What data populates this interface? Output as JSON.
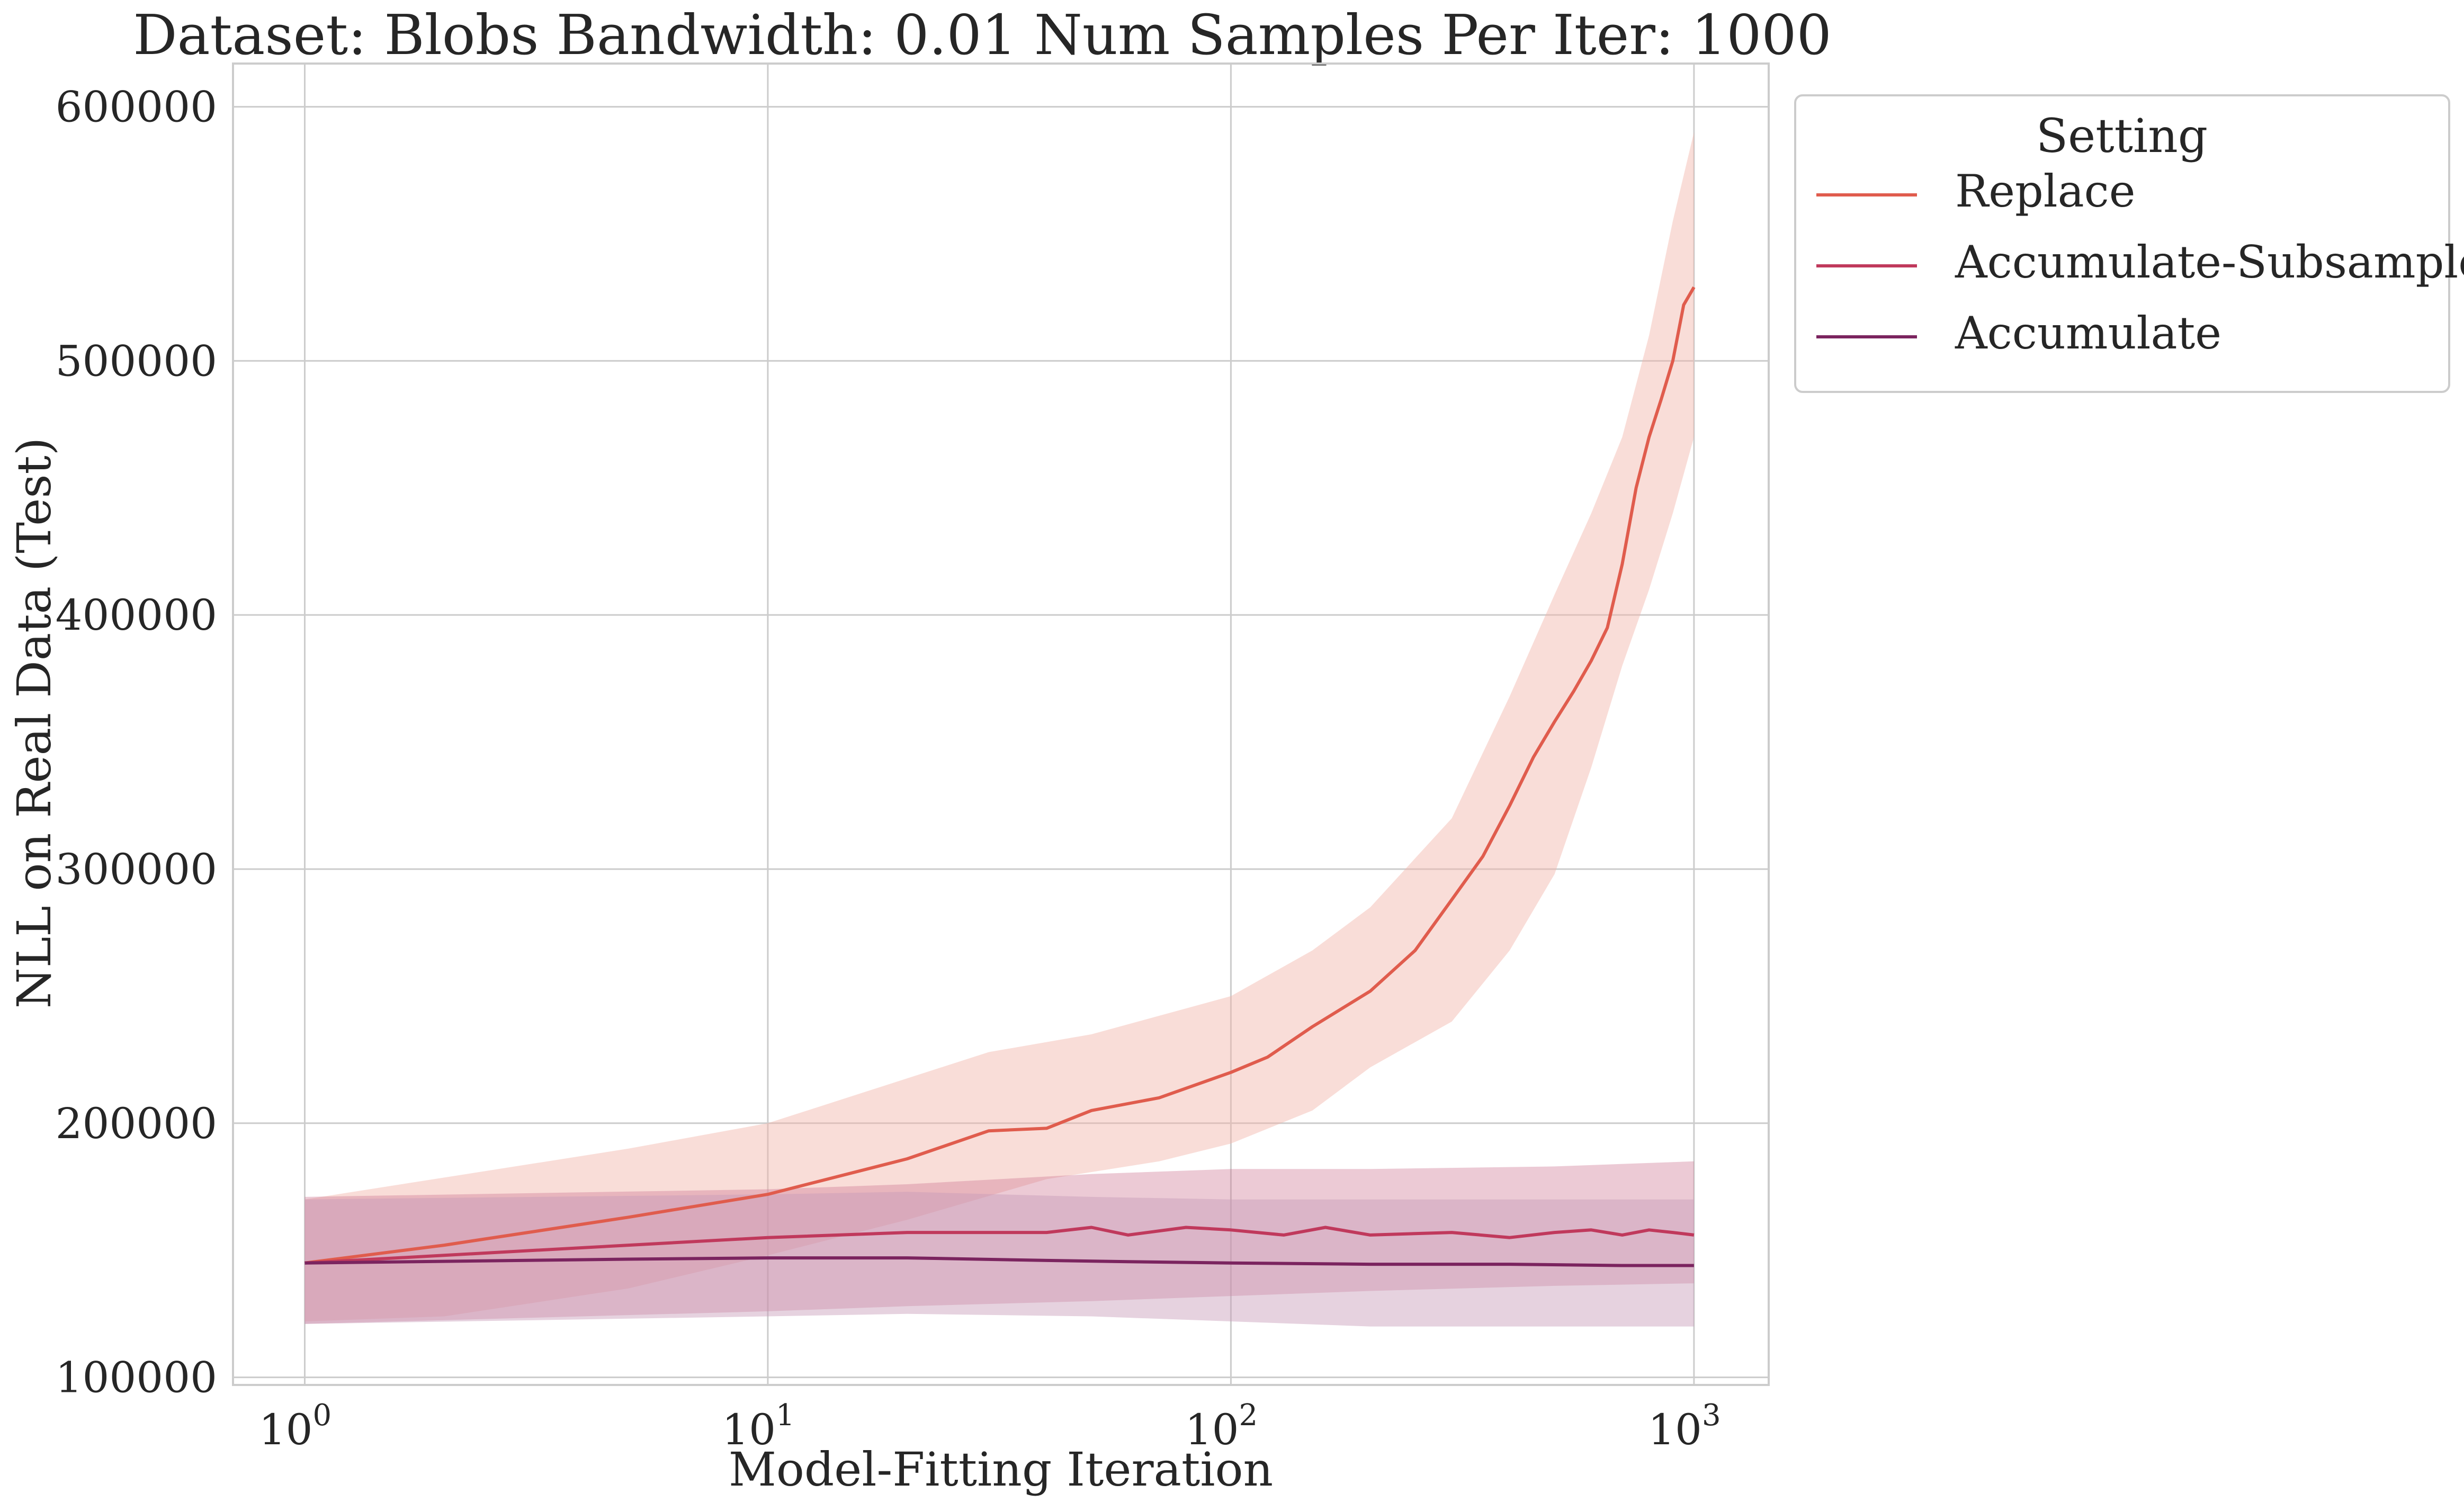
{
  "chart_data": {
    "type": "line",
    "title": "Dataset: Blobs Bandwidth: 0.01 Num Samples Per Iter: 1000",
    "xlabel": "Model-Fitting Iteration",
    "ylabel": "NLL on Real Data (Test)",
    "xscale": "log",
    "xlim": [
      0.7,
      1450
    ],
    "ylim": [
      97000,
      617000
    ],
    "xticks": [
      1,
      10,
      100,
      1000
    ],
    "xtick_labels": [
      {
        "base": "10",
        "exp": "0"
      },
      {
        "base": "10",
        "exp": "1"
      },
      {
        "base": "10",
        "exp": "2"
      },
      {
        "base": "10",
        "exp": "3"
      }
    ],
    "yticks": [
      100000,
      200000,
      300000,
      400000,
      500000,
      600000
    ],
    "ytick_labels": [
      "100000",
      "200000",
      "300000",
      "400000",
      "500000",
      "600000"
    ],
    "grid": true,
    "legend": {
      "title": "Setting",
      "placement": "outside-top-right"
    },
    "series": [
      {
        "name": "Replace",
        "color": "#e05c4d",
        "band_color": "#f2b3a8",
        "band_opacity": 0.45,
        "points": [
          [
            1,
            145000
          ],
          [
            2,
            152000
          ],
          [
            5,
            163000
          ],
          [
            10,
            172000
          ],
          [
            20,
            186000
          ],
          [
            30,
            197000
          ],
          [
            40,
            198000
          ],
          [
            50,
            205000
          ],
          [
            70,
            210000
          ],
          [
            100,
            220000
          ],
          [
            120,
            226000
          ],
          [
            150,
            238000
          ],
          [
            200,
            252000
          ],
          [
            250,
            268000
          ],
          [
            300,
            288000
          ],
          [
            350,
            305000
          ],
          [
            400,
            325000
          ],
          [
            450,
            344000
          ],
          [
            500,
            358000
          ],
          [
            550,
            370000
          ],
          [
            600,
            382000
          ],
          [
            650,
            395000
          ],
          [
            700,
            420000
          ],
          [
            750,
            450000
          ],
          [
            800,
            470000
          ],
          [
            850,
            485000
          ],
          [
            900,
            500000
          ],
          [
            950,
            522000
          ],
          [
            1000,
            529000
          ]
        ],
        "lower": [
          [
            1,
            122000
          ],
          [
            2,
            124000
          ],
          [
            5,
            135000
          ],
          [
            10,
            148000
          ],
          [
            20,
            162000
          ],
          [
            40,
            178000
          ],
          [
            70,
            185000
          ],
          [
            100,
            192000
          ],
          [
            150,
            205000
          ],
          [
            200,
            222000
          ],
          [
            300,
            240000
          ],
          [
            400,
            268000
          ],
          [
            500,
            298000
          ],
          [
            600,
            340000
          ],
          [
            700,
            380000
          ],
          [
            800,
            410000
          ],
          [
            900,
            440000
          ],
          [
            1000,
            470000
          ]
        ],
        "upper": [
          [
            1,
            170000
          ],
          [
            5,
            190000
          ],
          [
            10,
            200000
          ],
          [
            30,
            228000
          ],
          [
            50,
            235000
          ],
          [
            100,
            250000
          ],
          [
            150,
            268000
          ],
          [
            200,
            285000
          ],
          [
            300,
            320000
          ],
          [
            400,
            368000
          ],
          [
            500,
            408000
          ],
          [
            600,
            440000
          ],
          [
            700,
            470000
          ],
          [
            800,
            510000
          ],
          [
            900,
            555000
          ],
          [
            1000,
            590000
          ]
        ]
      },
      {
        "name": "Accumulate-Subsample",
        "color": "#c0395c",
        "band_color": "#d07a96",
        "band_opacity": 0.4,
        "points": [
          [
            1,
            145000
          ],
          [
            5,
            152000
          ],
          [
            10,
            155000
          ],
          [
            20,
            157000
          ],
          [
            40,
            157000
          ],
          [
            50,
            159000
          ],
          [
            60,
            156000
          ],
          [
            80,
            159000
          ],
          [
            100,
            158000
          ],
          [
            130,
            156000
          ],
          [
            160,
            159000
          ],
          [
            200,
            156000
          ],
          [
            300,
            157000
          ],
          [
            400,
            155000
          ],
          [
            500,
            157000
          ],
          [
            600,
            158000
          ],
          [
            700,
            156000
          ],
          [
            800,
            158000
          ],
          [
            900,
            157000
          ],
          [
            1000,
            156000
          ]
        ],
        "lower": [
          [
            1,
            121000
          ],
          [
            10,
            126000
          ],
          [
            20,
            128000
          ],
          [
            50,
            130000
          ],
          [
            100,
            132000
          ],
          [
            200,
            134000
          ],
          [
            500,
            136000
          ],
          [
            1000,
            137000
          ]
        ],
        "upper": [
          [
            1,
            171000
          ],
          [
            10,
            174000
          ],
          [
            20,
            176000
          ],
          [
            50,
            180000
          ],
          [
            100,
            182000
          ],
          [
            200,
            182000
          ],
          [
            500,
            183000
          ],
          [
            1000,
            185000
          ]
        ]
      },
      {
        "name": "Accumulate",
        "color": "#7b245f",
        "band_color": "#c89bb8",
        "band_opacity": 0.45,
        "points": [
          [
            1,
            145000
          ],
          [
            5,
            146500
          ],
          [
            10,
            147000
          ],
          [
            20,
            147000
          ],
          [
            40,
            146000
          ],
          [
            60,
            145500
          ],
          [
            100,
            145000
          ],
          [
            200,
            144500
          ],
          [
            400,
            144500
          ],
          [
            700,
            144000
          ],
          [
            1000,
            144000
          ]
        ],
        "lower": [
          [
            1,
            121000
          ],
          [
            10,
            124000
          ],
          [
            20,
            125000
          ],
          [
            50,
            124000
          ],
          [
            100,
            122000
          ],
          [
            200,
            120000
          ],
          [
            500,
            120000
          ],
          [
            1000,
            120000
          ]
        ],
        "upper": [
          [
            1,
            170000
          ],
          [
            10,
            172000
          ],
          [
            20,
            173000
          ],
          [
            50,
            171000
          ],
          [
            100,
            170000
          ],
          [
            200,
            170000
          ],
          [
            500,
            170000
          ],
          [
            1000,
            170000
          ]
        ]
      }
    ]
  }
}
